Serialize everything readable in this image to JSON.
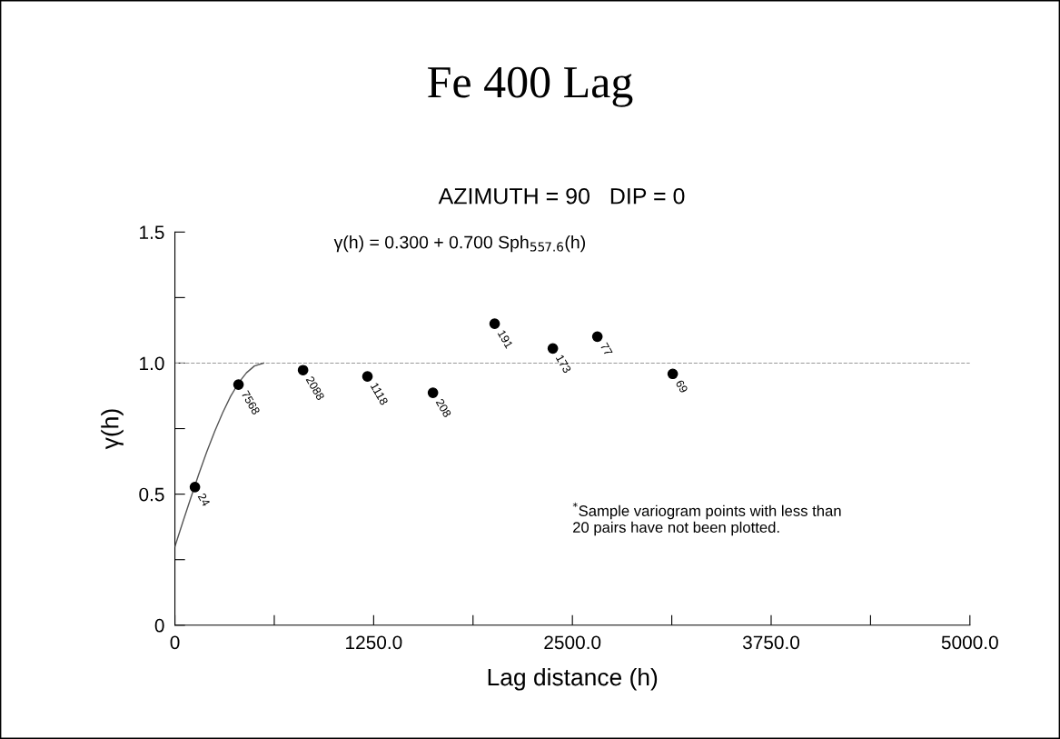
{
  "chart_data": {
    "type": "scatter",
    "title": "Fe 400 Lag",
    "subtitle": "AZIMUTH = 90   DIP = 0",
    "xlabel": "Lag distance (h)",
    "ylabel": "γ(h)",
    "xlim": [
      0,
      5000
    ],
    "ylim": [
      0,
      1.5
    ],
    "xticks": [
      0,
      {
        "value": 625,
        "label": null
      },
      {
        "value": 1250,
        "label": "1250.0"
      },
      {
        "value": 1875,
        "label": null
      },
      {
        "value": 2500,
        "label": "2500.0"
      },
      {
        "value": 3125,
        "label": null
      },
      {
        "value": 3750,
        "label": "3750.0"
      },
      {
        "value": 4375,
        "label": null
      },
      {
        "value": 5000,
        "label": "5000.0"
      }
    ],
    "yticks": [
      0,
      {
        "value": 0.25,
        "label": null
      },
      0.5,
      {
        "value": 0.75,
        "label": null
      },
      {
        "value": 1.0,
        "label": "1.0"
      },
      {
        "value": 1.25,
        "label": null
      },
      1.5
    ],
    "grid": false,
    "legend": false,
    "series": [
      {
        "color": "#000000",
        "marker": "circle",
        "x": [
          126,
          400,
          806,
          1211,
          1623,
          2011,
          2377,
          2657,
          3131
        ],
        "values": [
          0.527,
          0.918,
          0.973,
          0.949,
          0.887,
          1.15,
          1.056,
          1.101,
          0.959
        ]
      },
      {
        "type": "line",
        "color": "#555555",
        "line_style": "solid",
        "x": [
          0,
          50,
          100,
          150,
          200,
          250,
          300,
          350,
          400,
          450,
          500,
          557.6
        ],
        "values": [
          0.3,
          0.394,
          0.486,
          0.576,
          0.661,
          0.739,
          0.81,
          0.873,
          0.924,
          0.963,
          0.989,
          1.0
        ]
      }
    ],
    "ref_lines": [
      {
        "axis": "y",
        "value": 1.0,
        "color": "#999999",
        "line_style": "dashed"
      }
    ],
    "annotations": [
      "γ(h) = 0.300 + 0.700 Sph$_{557.6}$(h)",
      "$^{*}$Sample variogram points with less than\n20 pairs have not been plotted.",
      {
        "text": "24",
        "x": 126,
        "y": 0.527
      },
      {
        "text": "7568",
        "x": 400,
        "y": 0.918
      },
      {
        "text": "2088",
        "x": 806,
        "y": 0.973
      },
      {
        "text": "1118",
        "x": 1211,
        "y": 0.949
      },
      {
        "text": "208",
        "x": 1623,
        "y": 0.887
      },
      {
        "text": "191",
        "x": 2011,
        "y": 1.15
      },
      {
        "text": "173",
        "x": 2377,
        "y": 1.056
      },
      {
        "text": "77",
        "x": 2657,
        "y": 1.101
      },
      {
        "text": "69",
        "x": 3131,
        "y": 0.959
      }
    ]
  }
}
